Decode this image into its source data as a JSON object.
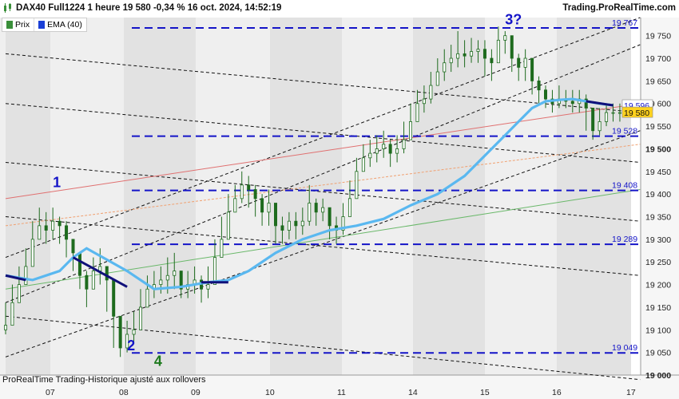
{
  "header": {
    "title": "DAX40 Full1224 1 heure 19 580 -0,34 % 16 oct. 2024, 14:52:19",
    "brand": "Trading.ProRealTime.com"
  },
  "legend": {
    "items": [
      {
        "label": "Prix",
        "color": "#3a8f3a"
      },
      {
        "label": "EMA (40)",
        "color": "#1a3fd6"
      }
    ]
  },
  "footer_note": "ProRealTime Trading-Historique ajusté aux rollovers",
  "colors": {
    "candle": "#1e6b1e",
    "ema_light": "#5ab8f0",
    "ema_dark": "#10107a",
    "level_line": "#1414c8",
    "channel_line": "#111111",
    "trend_red": "#e07070",
    "trend_orange": "#f0a070",
    "trend_green": "#6ab86a",
    "last_price_bg": "#ffd21e",
    "label_text": "#1414c8"
  },
  "chart_data": {
    "type": "line",
    "instrument": "DAX40 Full1224",
    "timeframe": "1 heure",
    "x_tick_labels": [
      "07",
      "08",
      "09",
      "10",
      "11",
      "14",
      "15",
      "16",
      "17"
    ],
    "y_tick_labels": [
      "19 750",
      "19 700",
      "19 650",
      "19 600",
      "19 550",
      "19 500",
      "19 450",
      "19 400",
      "19 350",
      "19 300",
      "19 250",
      "19 200",
      "19 150",
      "19 100",
      "19 050",
      "19 000"
    ],
    "ylim": [
      19000,
      19790
    ],
    "last_price": {
      "value": 19580,
      "label": "19 580"
    },
    "ema_last": {
      "value": 19596,
      "label": "19 596"
    },
    "levels": [
      {
        "value": 19767,
        "label": "19 767"
      },
      {
        "value": 19528,
        "label": "19 528"
      },
      {
        "value": 19408,
        "label": "19 408"
      },
      {
        "value": 19289,
        "label": "19 289"
      },
      {
        "value": 19049,
        "label": "19 049"
      }
    ],
    "wave_labels": [
      {
        "text": "1",
        "x": 0.7,
        "y": 19415
      },
      {
        "text": "2",
        "x": 1.8,
        "y": 19055
      },
      {
        "text": "4",
        "x": 2.2,
        "y": 19020
      },
      {
        "text": "3?",
        "x": 7.4,
        "y": 19775
      }
    ],
    "price_points": {
      "x": [
        0,
        0.1,
        0.2,
        0.3,
        0.4,
        0.5,
        0.6,
        0.7,
        0.8,
        0.9,
        1.0,
        1.1,
        1.2,
        1.3,
        1.4,
        1.5,
        1.6,
        1.7,
        1.8,
        1.9,
        2.0,
        2.1,
        2.2,
        2.3,
        2.4,
        2.5,
        2.6,
        2.7,
        2.8,
        2.9,
        3.0,
        3.1,
        3.2,
        3.3,
        3.4,
        3.5,
        3.6,
        3.7,
        3.8,
        3.9,
        4.0,
        4.1,
        4.2,
        4.3,
        4.4,
        4.5,
        4.6,
        4.7,
        4.8,
        4.9,
        5.0,
        5.1,
        5.2,
        5.3,
        5.4,
        5.5,
        5.6,
        5.7,
        5.8,
        5.9,
        6.0,
        6.1,
        6.2,
        6.3,
        6.4,
        6.5,
        6.6,
        6.7,
        6.8,
        6.9,
        7.0,
        7.1,
        7.2,
        7.3,
        7.4,
        7.5,
        7.6,
        7.7,
        7.8,
        7.9,
        8.0,
        8.1,
        8.2,
        8.3,
        8.4,
        8.5,
        8.6,
        8.7,
        8.8,
        8.9,
        9.0,
        9.1
      ],
      "close": [
        19110,
        19160,
        19200,
        19240,
        19300,
        19330,
        19320,
        19340,
        19330,
        19300,
        19270,
        19220,
        19190,
        19230,
        19240,
        19210,
        19130,
        19060,
        19090,
        19100,
        19150,
        19190,
        19200,
        19210,
        19220,
        19230,
        19190,
        19200,
        19210,
        19190,
        19200,
        19260,
        19300,
        19360,
        19390,
        19420,
        19410,
        19390,
        19360,
        19380,
        19330,
        19320,
        19340,
        19330,
        19340,
        19380,
        19360,
        19370,
        19330,
        19320,
        19350,
        19390,
        19450,
        19480,
        19490,
        19500,
        19510,
        19490,
        19500,
        19520,
        19560,
        19600,
        19610,
        19640,
        19670,
        19690,
        19700,
        19710,
        19705,
        19715,
        19720,
        19700,
        19690,
        19740,
        19750,
        19700,
        19680,
        19700,
        19650,
        19630,
        19610,
        19600,
        19610,
        19605,
        19600,
        19610,
        19590,
        19540,
        19560,
        19580,
        19580,
        19580
      ],
      "high": [
        19160,
        19200,
        19240,
        19280,
        19340,
        19370,
        19360,
        19370,
        19350,
        19340,
        19300,
        19260,
        19230,
        19260,
        19280,
        19240,
        19170,
        19100,
        19120,
        19140,
        19190,
        19220,
        19230,
        19240,
        19260,
        19270,
        19230,
        19230,
        19240,
        19220,
        19240,
        19300,
        19350,
        19400,
        19420,
        19450,
        19440,
        19420,
        19400,
        19410,
        19380,
        19350,
        19360,
        19360,
        19370,
        19420,
        19390,
        19390,
        19370,
        19350,
        19380,
        19430,
        19480,
        19510,
        19520,
        19530,
        19540,
        19520,
        19530,
        19560,
        19600,
        19630,
        19640,
        19670,
        19700,
        19720,
        19730,
        19760,
        19740,
        19745,
        19740,
        19740,
        19720,
        19770,
        19760,
        19730,
        19710,
        19720,
        19690,
        19660,
        19640,
        19630,
        19640,
        19630,
        19630,
        19630,
        19620,
        19580,
        19590,
        19600,
        19600,
        19600
      ],
      "low": [
        19090,
        19120,
        19170,
        19210,
        19260,
        19300,
        19290,
        19300,
        19290,
        19260,
        19230,
        19190,
        19150,
        19190,
        19200,
        19140,
        19060,
        19040,
        19050,
        19070,
        19110,
        19150,
        19170,
        19180,
        19180,
        19190,
        19170,
        19170,
        19180,
        19160,
        19170,
        19220,
        19270,
        19320,
        19360,
        19380,
        19370,
        19350,
        19330,
        19330,
        19290,
        19290,
        19300,
        19300,
        19310,
        19330,
        19330,
        19340,
        19300,
        19290,
        19310,
        19350,
        19400,
        19450,
        19460,
        19470,
        19480,
        19460,
        19470,
        19490,
        19520,
        19560,
        19580,
        19600,
        19640,
        19650,
        19670,
        19680,
        19680,
        19690,
        19690,
        19660,
        19650,
        19700,
        19710,
        19670,
        19650,
        19650,
        19620,
        19600,
        19590,
        19580,
        19590,
        19590,
        19580,
        19580,
        19540,
        19520,
        19530,
        19550,
        19560,
        19560
      ]
    },
    "ema_40": {
      "x": [
        0,
        0.4,
        0.8,
        1.0,
        1.2,
        1.5,
        1.8,
        2.0,
        2.2,
        2.6,
        3.0,
        3.3,
        3.6,
        4.0,
        4.4,
        4.8,
        5.2,
        5.6,
        6.0,
        6.4,
        6.8,
        7.0,
        7.2,
        7.4,
        7.6,
        7.8,
        8.0,
        8.2,
        8.4,
        8.6,
        8.8,
        9.0
      ],
      "y": [
        19220,
        19210,
        19230,
        19260,
        19280,
        19255,
        19230,
        19210,
        19190,
        19195,
        19205,
        19210,
        19230,
        19270,
        19300,
        19320,
        19330,
        19345,
        19375,
        19400,
        19440,
        19470,
        19500,
        19530,
        19560,
        19590,
        19605,
        19608,
        19610,
        19605,
        19600,
        19596
      ]
    },
    "ema_dark_segments": [
      {
        "x": [
          0,
          0.3
        ],
        "y": [
          19220,
          19210
        ]
      },
      {
        "x": [
          1.0,
          1.8
        ],
        "y": [
          19260,
          19195
        ]
      },
      {
        "x": [
          2.9,
          3.3
        ],
        "y": [
          19205,
          19205
        ]
      },
      {
        "x": [
          8.6,
          9.0
        ],
        "y": [
          19605,
          19596
        ]
      }
    ],
    "channel_lines": [
      {
        "x": [
          0,
          9.4
        ],
        "y": [
          19260,
          19790
        ]
      },
      {
        "x": [
          0,
          9.4
        ],
        "y": [
          19160,
          19730
        ]
      },
      {
        "x": [
          0,
          9.4
        ],
        "y": [
          19040,
          19540
        ]
      },
      {
        "x": [
          0,
          9.4
        ],
        "y": [
          19710,
          19580
        ]
      },
      {
        "x": [
          0,
          9.4
        ],
        "y": [
          19600,
          19470
        ]
      },
      {
        "x": [
          0,
          9.4
        ],
        "y": [
          19470,
          19340
        ]
      },
      {
        "x": [
          0,
          9.4
        ],
        "y": [
          19350,
          19220
        ]
      },
      {
        "x": [
          0,
          9.4
        ],
        "y": [
          19130,
          18990
        ]
      }
    ],
    "trend_lines": [
      {
        "color_key": "trend_red",
        "x": [
          0,
          9.4
        ],
        "y": [
          19390,
          19600
        ],
        "dashed": false
      },
      {
        "color_key": "trend_orange",
        "x": [
          0,
          9.4
        ],
        "y": [
          19330,
          19510
        ],
        "dashed": true
      },
      {
        "color_key": "trend_green",
        "x": [
          0,
          9.4
        ],
        "y": [
          19190,
          19410
        ],
        "dashed": false
      }
    ]
  }
}
